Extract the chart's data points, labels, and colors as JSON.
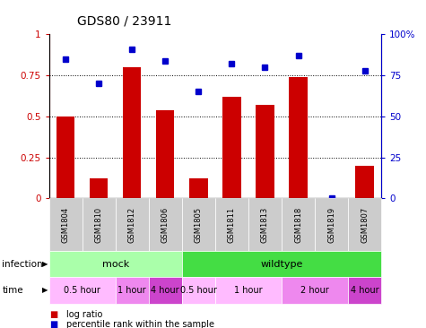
{
  "title": "GDS80 / 23911",
  "samples": [
    "GSM1804",
    "GSM1810",
    "GSM1812",
    "GSM1806",
    "GSM1805",
    "GSM1811",
    "GSM1813",
    "GSM1818",
    "GSM1819",
    "GSM1807"
  ],
  "log_ratio": [
    0.5,
    0.12,
    0.8,
    0.54,
    0.12,
    0.62,
    0.57,
    0.74,
    0.0,
    0.2
  ],
  "percentile": [
    85,
    70,
    91,
    84,
    65,
    82,
    80,
    87,
    0,
    78
  ],
  "bar_color": "#cc0000",
  "dot_color": "#0000cc",
  "y_ticks_left": [
    0,
    0.25,
    0.5,
    0.75,
    1.0
  ],
  "y_tick_labels_left": [
    "0",
    "0.25",
    "0.5",
    "0.75",
    "1"
  ],
  "y_ticks_right": [
    0,
    25,
    50,
    75,
    100
  ],
  "y_tick_labels_right": [
    "0",
    "25",
    "50",
    "75",
    "100%"
  ],
  "dotted_lines": [
    0.25,
    0.5,
    0.75
  ],
  "infection_groups": [
    {
      "label": "mock",
      "start": 0,
      "end": 4,
      "color": "#aaffaa"
    },
    {
      "label": "wildtype",
      "start": 4,
      "end": 10,
      "color": "#44dd44"
    }
  ],
  "time_groups": [
    {
      "label": "0.5 hour",
      "start": 0,
      "end": 2,
      "color": "#ffbbff"
    },
    {
      "label": "1 hour",
      "start": 2,
      "end": 3,
      "color": "#ee88ee"
    },
    {
      "label": "4 hour",
      "start": 3,
      "end": 4,
      "color": "#cc44cc"
    },
    {
      "label": "0.5 hour",
      "start": 4,
      "end": 5,
      "color": "#ffbbff"
    },
    {
      "label": "1 hour",
      "start": 5,
      "end": 7,
      "color": "#ffbbff"
    },
    {
      "label": "2 hour",
      "start": 7,
      "end": 9,
      "color": "#ee88ee"
    },
    {
      "label": "4 hour",
      "start": 9,
      "end": 10,
      "color": "#cc44cc"
    }
  ],
  "legend_items": [
    {
      "label": "log ratio",
      "color": "#cc0000"
    },
    {
      "label": "percentile rank within the sample",
      "color": "#0000cc"
    }
  ],
  "infection_label": "infection",
  "time_label": "time",
  "sample_box_color": "#cccccc",
  "bg_color": "#ffffff"
}
